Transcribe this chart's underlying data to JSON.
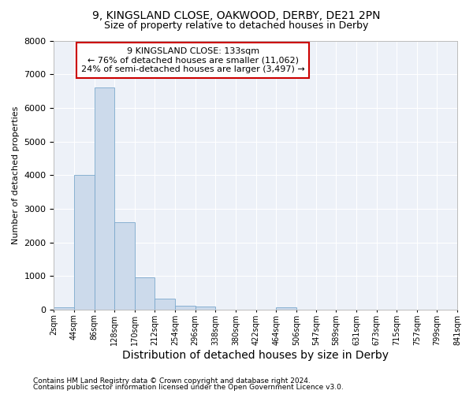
{
  "title1": "9, KINGSLAND CLOSE, OAKWOOD, DERBY, DE21 2PN",
  "title2": "Size of property relative to detached houses in Derby",
  "xlabel": "Distribution of detached houses by size in Derby",
  "ylabel": "Number of detached properties",
  "bar_color": "#ccdaeb",
  "bar_edge_color": "#7aa8cc",
  "background_color": "#edf1f8",
  "grid_color": "#ffffff",
  "ylim": [
    0,
    8000
  ],
  "bin_edges": [
    2,
    44,
    86,
    128,
    170,
    212,
    254,
    296,
    338,
    380,
    422,
    464,
    506,
    547,
    589,
    631,
    673,
    715,
    757,
    799,
    841
  ],
  "bar_values": [
    70,
    4000,
    6600,
    2600,
    950,
    330,
    120,
    80,
    0,
    0,
    0,
    70,
    0,
    0,
    0,
    0,
    0,
    0,
    0,
    0
  ],
  "annotation_box_text_line1": "9 KINGSLAND CLOSE: 133sqm",
  "annotation_box_text_line2": "← 76% of detached houses are smaller (11,062)",
  "annotation_box_text_line3": "24% of semi-detached houses are larger (3,497) →",
  "annotation_box_color": "#cc0000",
  "property_size": 133,
  "footnote1": "Contains HM Land Registry data © Crown copyright and database right 2024.",
  "footnote2": "Contains public sector information licensed under the Open Government Licence v3.0."
}
